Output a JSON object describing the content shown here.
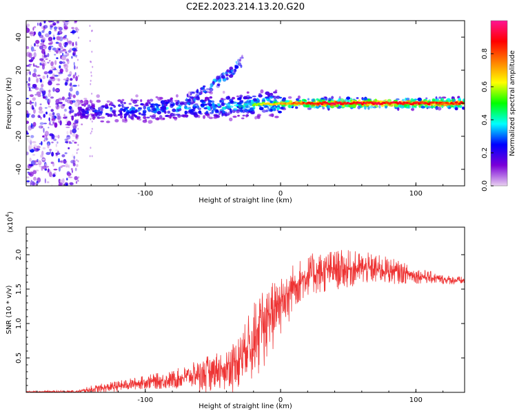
{
  "title": "C2E2.2023.214.13.20.G20",
  "chart_data": [
    {
      "type": "heatmap",
      "name": "spectrogram",
      "xlabel": "Height of straight line (km)",
      "ylabel": "Frequency (Hz)",
      "xlim": [
        -188,
        136
      ],
      "ylim": [
        -50,
        50
      ],
      "xticks": [
        -100,
        0,
        100
      ],
      "yticks": [
        -40,
        -20,
        0,
        20,
        40
      ],
      "colorbar": {
        "label": "Normalized spectral amplitude",
        "range": [
          0,
          1
        ],
        "ticks": [
          0.0,
          0.2,
          0.4,
          0.6,
          0.8
        ],
        "colors": [
          "#e8d0f0",
          "#7a00d8",
          "#0000ff",
          "#00ffff",
          "#00ff00",
          "#ffff00",
          "#ff7f00",
          "#ff0000",
          "#ff1493"
        ]
      },
      "ridge": {
        "x": [
          -150,
          -120,
          -100,
          -80,
          -60,
          -40,
          -20,
          0,
          20,
          40,
          60,
          80,
          100,
          120,
          136
        ],
        "freq": [
          -5,
          -4,
          -4,
          -3,
          -2,
          -2,
          -1,
          0,
          0,
          0,
          0,
          0,
          0,
          0,
          0
        ],
        "amplitude": [
          0.3,
          0.4,
          0.45,
          0.5,
          0.5,
          0.55,
          0.6,
          0.7,
          0.85,
          0.9,
          0.9,
          0.9,
          0.9,
          0.85,
          0.85
        ]
      },
      "noise_region": {
        "x_range": [
          -188,
          -150
        ],
        "freq_range": [
          -50,
          50
        ],
        "amplitude": 0.2
      },
      "branch": {
        "x": [
          -70,
          -55,
          -45,
          -35,
          -28
        ],
        "freq": [
          2,
          8,
          14,
          20,
          26
        ]
      }
    },
    {
      "type": "line",
      "name": "snr",
      "xlabel": "Height of straight line (km)",
      "ylabel": "SNR (10 * v/v)",
      "multiplier": "(x10",
      "multiplier_exp": "4",
      "multiplier_close": ")",
      "color": "#ee3333",
      "xlim": [
        -188,
        136
      ],
      "ylim": [
        0,
        2.4
      ],
      "xticks": [
        -100,
        0,
        100
      ],
      "yticks": [
        0.5,
        1.0,
        1.5,
        2.0
      ],
      "ytick_labels": [
        "0.5",
        "1.0",
        "1.5",
        "2.0"
      ],
      "envelope": {
        "x": [
          -188,
          -150,
          -140,
          -120,
          -100,
          -80,
          -60,
          -40,
          -30,
          -20,
          -10,
          0,
          10,
          20,
          30,
          40,
          60,
          80,
          100,
          120,
          136
        ],
        "mean": [
          0.01,
          0.01,
          0.04,
          0.09,
          0.15,
          0.18,
          0.27,
          0.38,
          0.5,
          0.85,
          1.1,
          1.35,
          1.55,
          1.7,
          1.74,
          1.78,
          1.8,
          1.77,
          1.7,
          1.64,
          1.62
        ],
        "spread": [
          0.01,
          0.02,
          0.06,
          0.08,
          0.1,
          0.14,
          0.2,
          0.3,
          0.35,
          0.45,
          0.45,
          0.4,
          0.35,
          0.3,
          0.32,
          0.3,
          0.25,
          0.2,
          0.12,
          0.07,
          0.06
        ]
      }
    }
  ]
}
